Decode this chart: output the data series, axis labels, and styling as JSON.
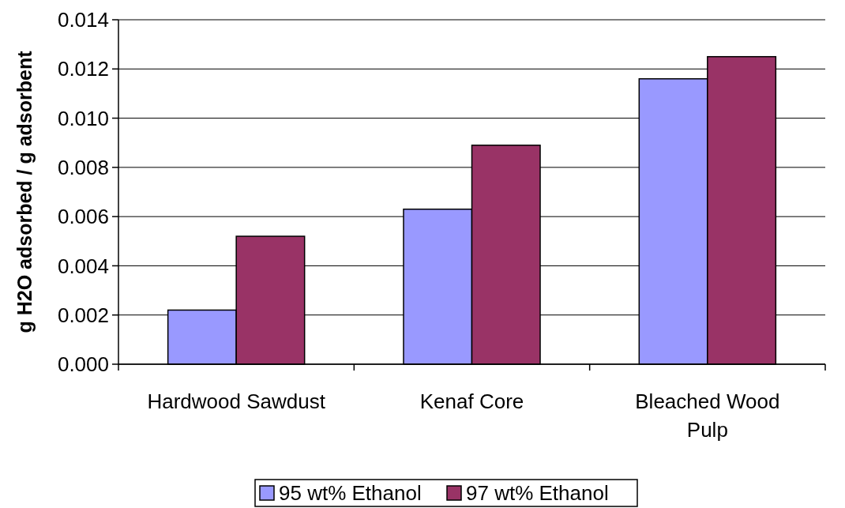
{
  "chart_data": {
    "type": "bar",
    "ylabel": "g H2O adsorbed / g adsorbent",
    "categories": [
      "Hardwood Sawdust",
      "Kenaf Core",
      "Bleached Wood Pulp"
    ],
    "series": [
      {
        "name": "95 wt% Ethanol",
        "color": "#9999ff",
        "values": [
          0.0022,
          0.0063,
          0.0116
        ]
      },
      {
        "name": "97 wt% Ethanol",
        "color": "#993366",
        "values": [
          0.0052,
          0.0089,
          0.0125
        ]
      }
    ],
    "ylim": [
      0,
      0.014
    ],
    "yticks": [
      {
        "value": 0,
        "label": "0.000"
      },
      {
        "value": 0.002,
        "label": "0.002"
      },
      {
        "value": 0.004,
        "label": "0.004"
      },
      {
        "value": 0.006,
        "label": "0.006"
      },
      {
        "value": 0.008,
        "label": "0.008"
      },
      {
        "value": 0.01,
        "label": "0.010"
      },
      {
        "value": 0.012,
        "label": "0.012"
      },
      {
        "value": 0.014,
        "label": "0.014"
      }
    ],
    "grid": "y",
    "legend": "bottom"
  }
}
